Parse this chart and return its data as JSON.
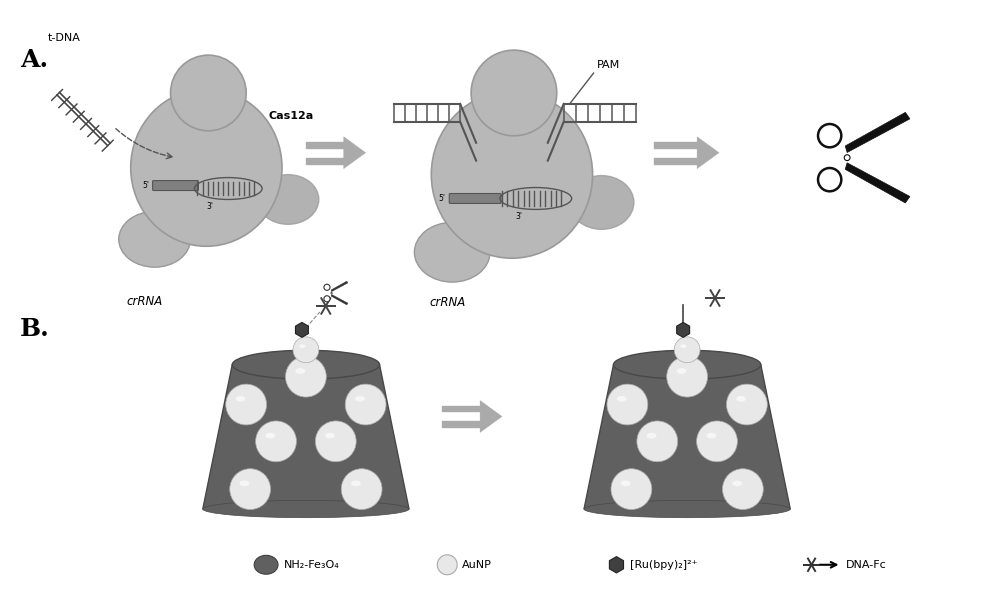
{
  "bg_color": "#ffffff",
  "label_A": "A.",
  "label_B": "B.",
  "cas12a_color": "#b8b8b8",
  "cas12a_dark": "#999999",
  "dna_gray": "#808080",
  "dna_dark": "#555555",
  "arrow_color": "#aaaaaa",
  "arrow_edge": "#888888",
  "text_color": "#000000",
  "legend_texts": [
    "NH₂-Fe₃O₄",
    "AuNP",
    "[Ru(bpy)₂]²⁺",
    "DNA-Fc"
  ],
  "fe3o4_color": "#606060",
  "aunp_color": "#d8d8d8",
  "aunp_light": "#e8e8e8",
  "ru_color": "#404040",
  "scissors_color": "#111111"
}
